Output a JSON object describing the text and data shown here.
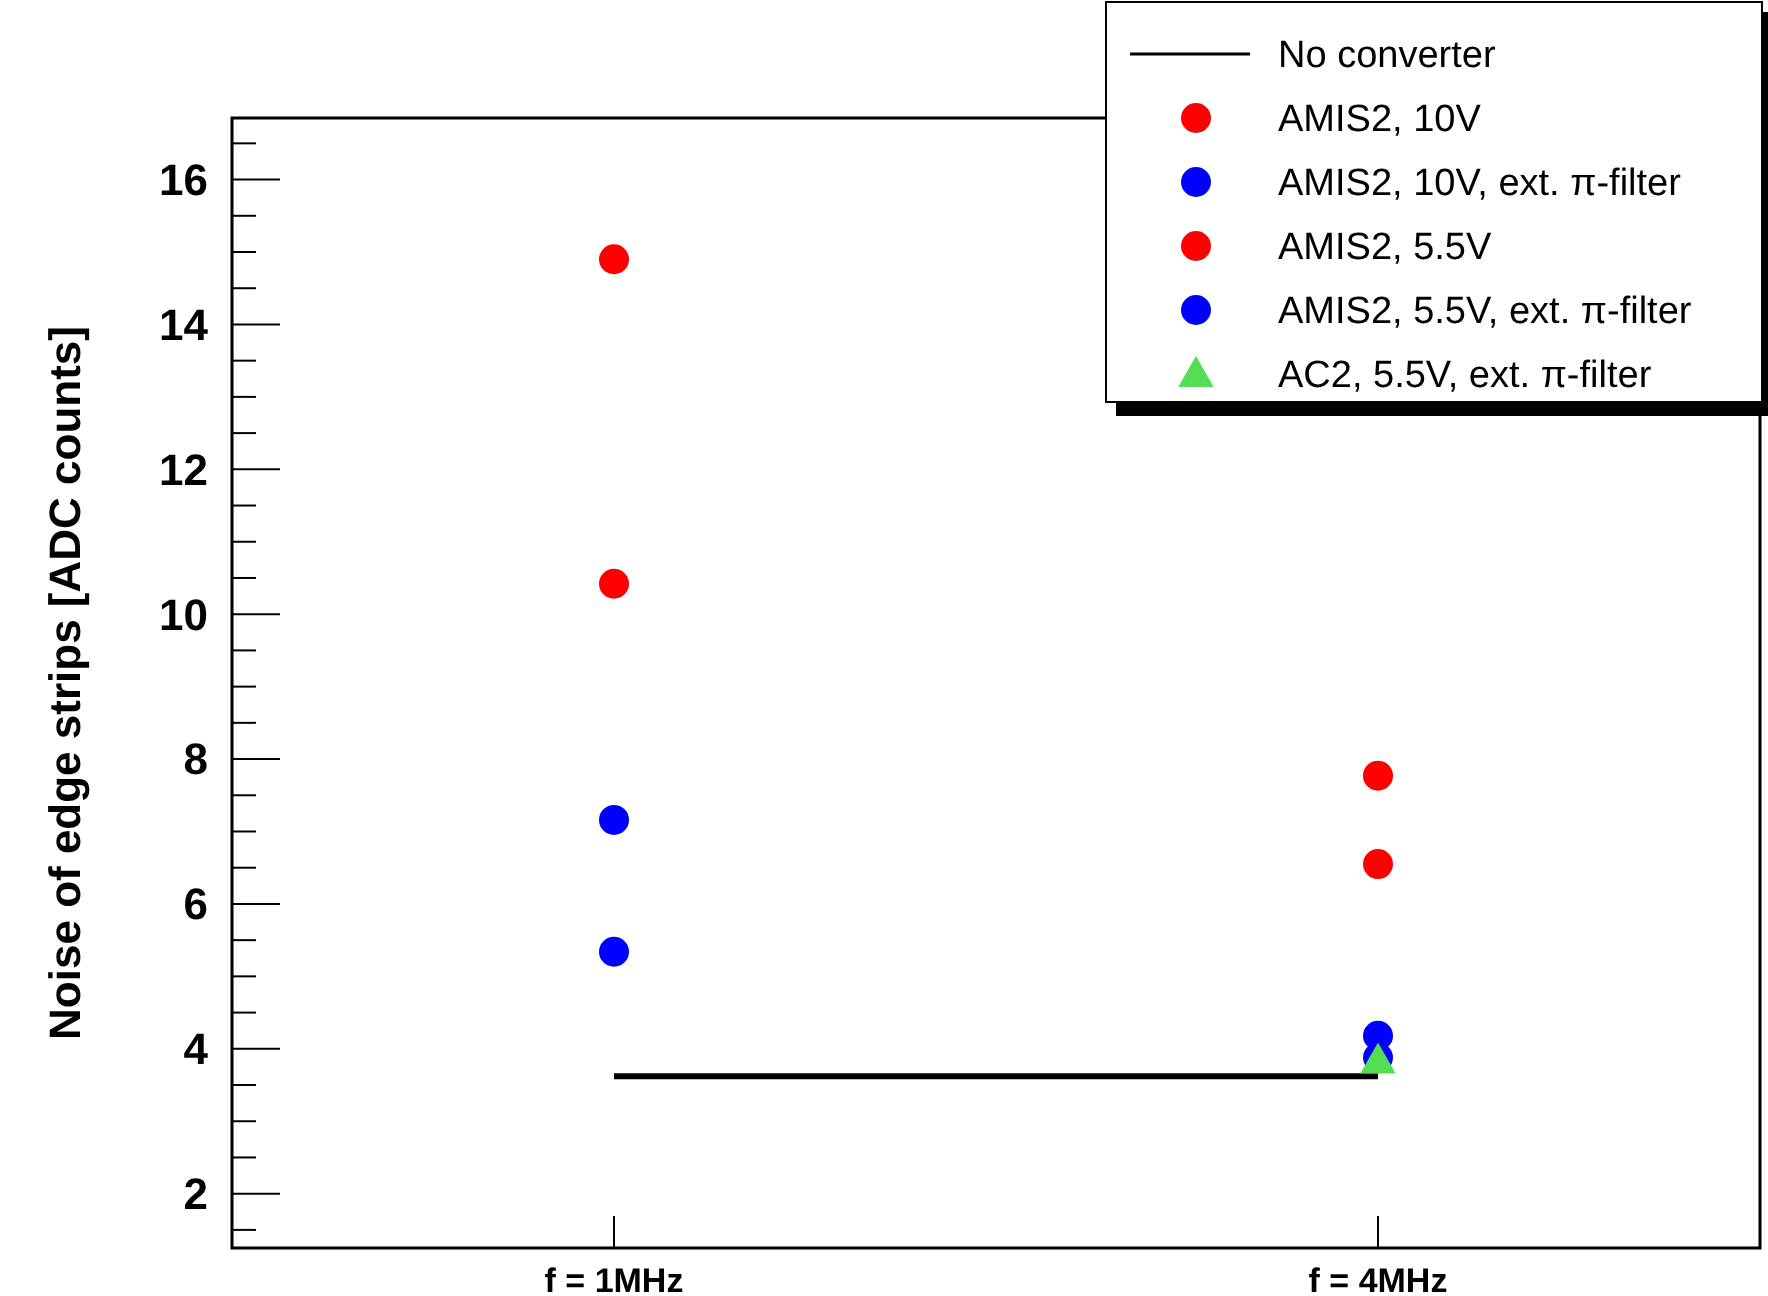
{
  "chart_data": {
    "type": "scatter",
    "ylabel": "Noise of edge strips [ADC counts]",
    "categories": [
      "f = 1MHz",
      "f = 4MHz"
    ],
    "ylim": [
      1.25,
      16.85
    ],
    "yticks": [
      2,
      4,
      6,
      8,
      10,
      12,
      14,
      16
    ],
    "legend": "top right",
    "grid": false,
    "series": [
      {
        "name": "No converter",
        "type": "line",
        "color": "#000000",
        "marker": "none",
        "line_style": "solid",
        "values": [
          3.62,
          3.62
        ]
      },
      {
        "name": "AMIS2, 10V",
        "color": "#ff0000",
        "marker": "circle",
        "values": [
          14.9,
          7.77
        ]
      },
      {
        "name": "AMIS2, 10V, ext. π-filter",
        "color": "#0000ff",
        "marker": "circle",
        "values": [
          7.16,
          4.18
        ]
      },
      {
        "name": "AMIS2, 5.5V",
        "color": "#ff0000",
        "marker": "circle",
        "values": [
          10.42,
          6.55
        ]
      },
      {
        "name": "AMIS2, 5.5V, ext. π-filter",
        "color": "#0000ff",
        "marker": "circle",
        "values": [
          5.34,
          3.88
        ]
      },
      {
        "name": "AC2, 5.5V, ext. π-filter",
        "color": "#55dd55",
        "marker": "triangle",
        "values": [
          null,
          3.84
        ]
      }
    ]
  }
}
